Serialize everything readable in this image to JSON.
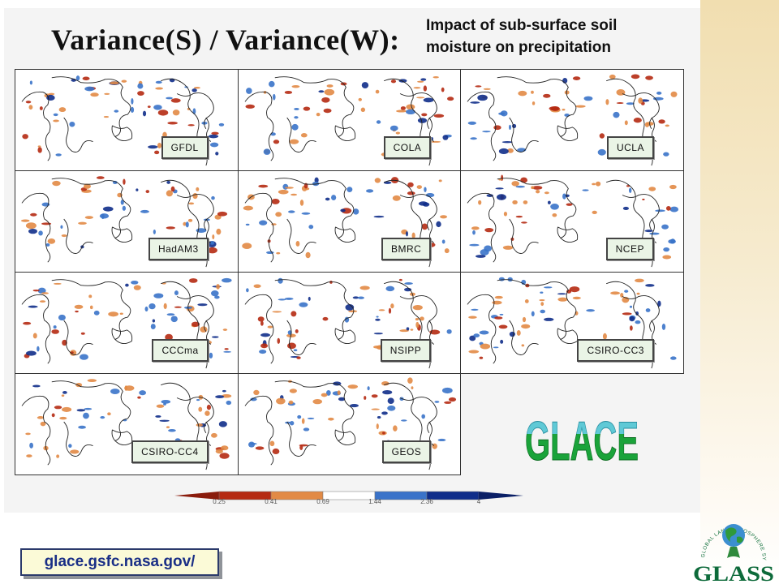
{
  "slide": {
    "main_title": "Variance(S) / Variance(W):",
    "subtitle_line1": "Impact of sub-surface soil",
    "subtitle_line2": "moisture on precipitation"
  },
  "models": [
    "GFDL",
    "COLA",
    "UCLA",
    "HadAM3",
    "BMRC",
    "NCEP",
    "CCCma",
    "NSIPP",
    "CSIRO-CC3",
    "CSIRO-CC4",
    "GEOS"
  ],
  "colorbar": {
    "ticks": [
      "0.25",
      "0.41",
      "0.69",
      "1.44",
      "2.36",
      "4"
    ],
    "colors": [
      "#b52a12",
      "#e28a45",
      "#ffffff",
      "#3a73c9",
      "#0f2d8a"
    ]
  },
  "logos": {
    "glace": "GLACE",
    "glass": "GLASS",
    "glass_ring_text": "GLOBAL LAND ATMOSPHERE SYSTEM STUDY"
  },
  "footer": {
    "url": "glace.gsfc.nasa.gov/"
  },
  "colors": {
    "warm_dark": "#b52a12",
    "warm_light": "#e28a45",
    "cool_light": "#3a73c9",
    "cool_dark": "#0f2d8a",
    "glace_top": "#5fc9d6",
    "glace_bottom": "#1aa33a",
    "url_text": "#1a2f86"
  }
}
